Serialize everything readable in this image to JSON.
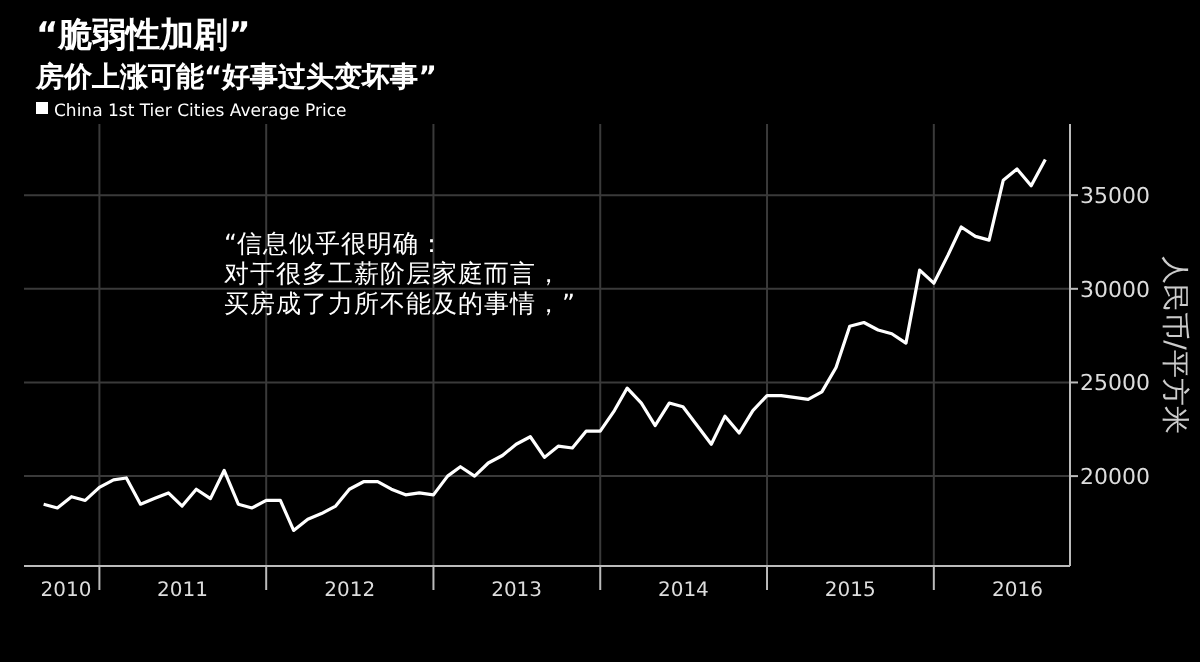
{
  "chart_data": {
    "type": "line",
    "title": "“脆弱性加剧”",
    "subtitle": "房价上涨可能“好事过头变坏事”",
    "ylabel": "人民币/平方米",
    "annotations": [
      "“信息似乎很明确：",
      "对于很多工薪阶层家庭而言，",
      "买房成了力所不能及的事情，”"
    ],
    "x": [
      "2010-09",
      "2010-10",
      "2010-11",
      "2010-12",
      "2011-01",
      "2011-02",
      "2011-03",
      "2011-04",
      "2011-05",
      "2011-06",
      "2011-07",
      "2011-08",
      "2011-09",
      "2011-10",
      "2011-11",
      "2011-12",
      "2012-01",
      "2012-02",
      "2012-03",
      "2012-04",
      "2012-05",
      "2012-06",
      "2012-07",
      "2012-08",
      "2012-09",
      "2012-10",
      "2012-11",
      "2012-12",
      "2013-01",
      "2013-02",
      "2013-03",
      "2013-04",
      "2013-05",
      "2013-06",
      "2013-07",
      "2013-08",
      "2013-09",
      "2013-10",
      "2013-11",
      "2013-12",
      "2014-01",
      "2014-02",
      "2014-03",
      "2014-04",
      "2014-05",
      "2014-06",
      "2014-07",
      "2014-08",
      "2014-09",
      "2014-10",
      "2014-11",
      "2014-12",
      "2015-01",
      "2015-02",
      "2015-03",
      "2015-04",
      "2015-05",
      "2015-06",
      "2015-07",
      "2015-08",
      "2015-09",
      "2015-10",
      "2015-11",
      "2015-12",
      "2016-01",
      "2016-02",
      "2016-03",
      "2016-04",
      "2016-05",
      "2016-06",
      "2016-07",
      "2016-08",
      "2016-09"
    ],
    "series": [
      {
        "name": "China 1st Tier Cities Average Price",
        "color": "#ffffff",
        "values": [
          18500,
          18300,
          18900,
          18700,
          19400,
          19800,
          19900,
          18500,
          18800,
          19100,
          18400,
          19300,
          18800,
          20300,
          18500,
          18300,
          18700,
          18700,
          17100,
          17700,
          18000,
          18400,
          19300,
          19700,
          19700,
          19300,
          19000,
          19100,
          19000,
          20000,
          20500,
          20000,
          20700,
          21100,
          21700,
          22100,
          21000,
          21600,
          21500,
          22400,
          22400,
          23500,
          24700,
          23900,
          22700,
          23900,
          23700,
          22700,
          21700,
          23200,
          22300,
          23500,
          24300,
          24300,
          24200,
          24100,
          24500,
          25800,
          28000,
          28200,
          27800,
          27600,
          27100,
          31000,
          30300,
          31800,
          33300,
          32800,
          32600,
          35800,
          36400,
          35500,
          36900
        ]
      }
    ],
    "xlim": [
      "2010-07-20",
      "2016-10-25"
    ],
    "xticks": [
      {
        "value": "2010-10-20",
        "label": "2010"
      },
      {
        "value": "2011-01-01",
        "label": null
      },
      {
        "value": "2011-07-02",
        "label": "2011"
      },
      {
        "value": "2012-01-01",
        "label": null
      },
      {
        "value": "2012-07-02",
        "label": "2012"
      },
      {
        "value": "2013-01-01",
        "label": null
      },
      {
        "value": "2013-07-02",
        "label": "2013"
      },
      {
        "value": "2014-01-01",
        "label": null
      },
      {
        "value": "2014-07-02",
        "label": "2014"
      },
      {
        "value": "2015-01-01",
        "label": null
      },
      {
        "value": "2015-07-02",
        "label": "2015"
      },
      {
        "value": "2016-01-01",
        "label": null
      },
      {
        "value": "2016-07-02",
        "label": "2016"
      }
    ],
    "ylim": [
      15200,
      38800
    ],
    "yticks": [
      20000,
      25000,
      30000,
      35000
    ],
    "grid": true,
    "legend": "top left",
    "marker": "none",
    "line_style": "solid"
  }
}
